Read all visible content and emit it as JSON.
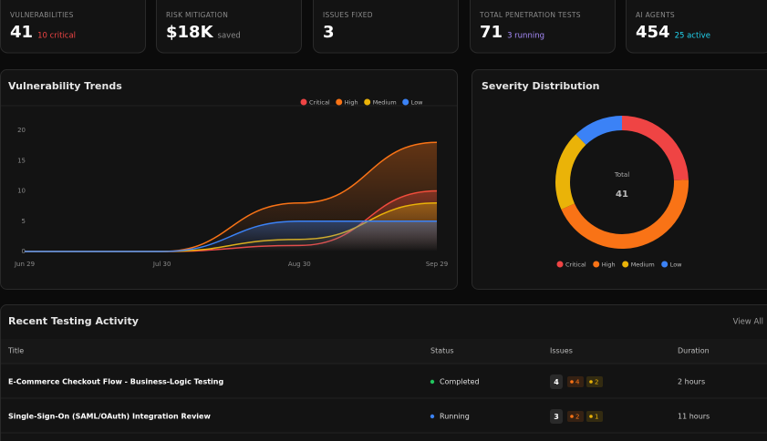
{
  "stats": [
    {
      "label": "VULNERABILITIES",
      "value": 41,
      "note": "10 critical",
      "note_color": "#ef4444"
    },
    {
      "label": "RISK MITIGATION",
      "value": "$18K",
      "note": "saved",
      "note_color": "#8a8a8a"
    },
    {
      "label": "ISSUES FIXED",
      "value": 3
    },
    {
      "label": "TOTAL PENETRATION TESTS",
      "value": 71,
      "note": "3 running",
      "note_color": "#a78bfa"
    },
    {
      "label": "AI AGENTS",
      "value": 454,
      "note": "25 active",
      "note_color": "#22d3ee"
    }
  ],
  "chart_data": [
    {
      "type": "line",
      "title": "Vulnerability Trends",
      "categories": [
        "Jun 29",
        "Jul 30",
        "Aug 30",
        "Sep 29"
      ],
      "series": [
        {
          "name": "Critical",
          "color": "#ef4444",
          "values": [
            0,
            0,
            1,
            10
          ]
        },
        {
          "name": "High",
          "color": "#f97316",
          "values": [
            0,
            0,
            8,
            18
          ]
        },
        {
          "name": "Medium",
          "color": "#eab308",
          "values": [
            0,
            0,
            2,
            8
          ]
        },
        {
          "name": "Low",
          "color": "#3b82f6",
          "values": [
            0,
            0,
            5,
            5
          ]
        }
      ],
      "ylim": [
        0,
        20
      ],
      "yticks": [
        0,
        5,
        10,
        15,
        20
      ],
      "legend": "top-right"
    },
    {
      "type": "donut",
      "title": "Severity Distribution",
      "categories": [
        "Critical",
        "High",
        "Medium",
        "Low"
      ],
      "values": [
        10,
        18,
        8,
        5
      ],
      "colors": [
        "#ef4444",
        "#f97316",
        "#eab308",
        "#3b82f6"
      ],
      "center_label": "Total",
      "center_value": 41,
      "legend": "bottom"
    }
  ],
  "activity": {
    "title": "Recent Testing Activity",
    "view_all": "View All",
    "columns": [
      "Title",
      "Status",
      "Issues",
      "Duration"
    ],
    "rows": [
      {
        "title": "E-Commerce Checkout Flow - Business-Logic Testing",
        "status": "Completed",
        "status_color": "#22c55e",
        "issues": 4,
        "badges": [
          {
            "value": 4,
            "color": "#f97316"
          },
          {
            "value": 2,
            "color": "#eab308"
          }
        ],
        "duration": "2 hours"
      },
      {
        "title": "Single-Sign-On (SAML/OAuth) Integration Review",
        "status": "Running",
        "status_color": "#3b82f6",
        "issues": 3,
        "badges": [
          {
            "value": 2,
            "color": "#f97316"
          },
          {
            "value": 1,
            "color": "#eab308"
          }
        ],
        "duration": "11 hours"
      }
    ]
  }
}
